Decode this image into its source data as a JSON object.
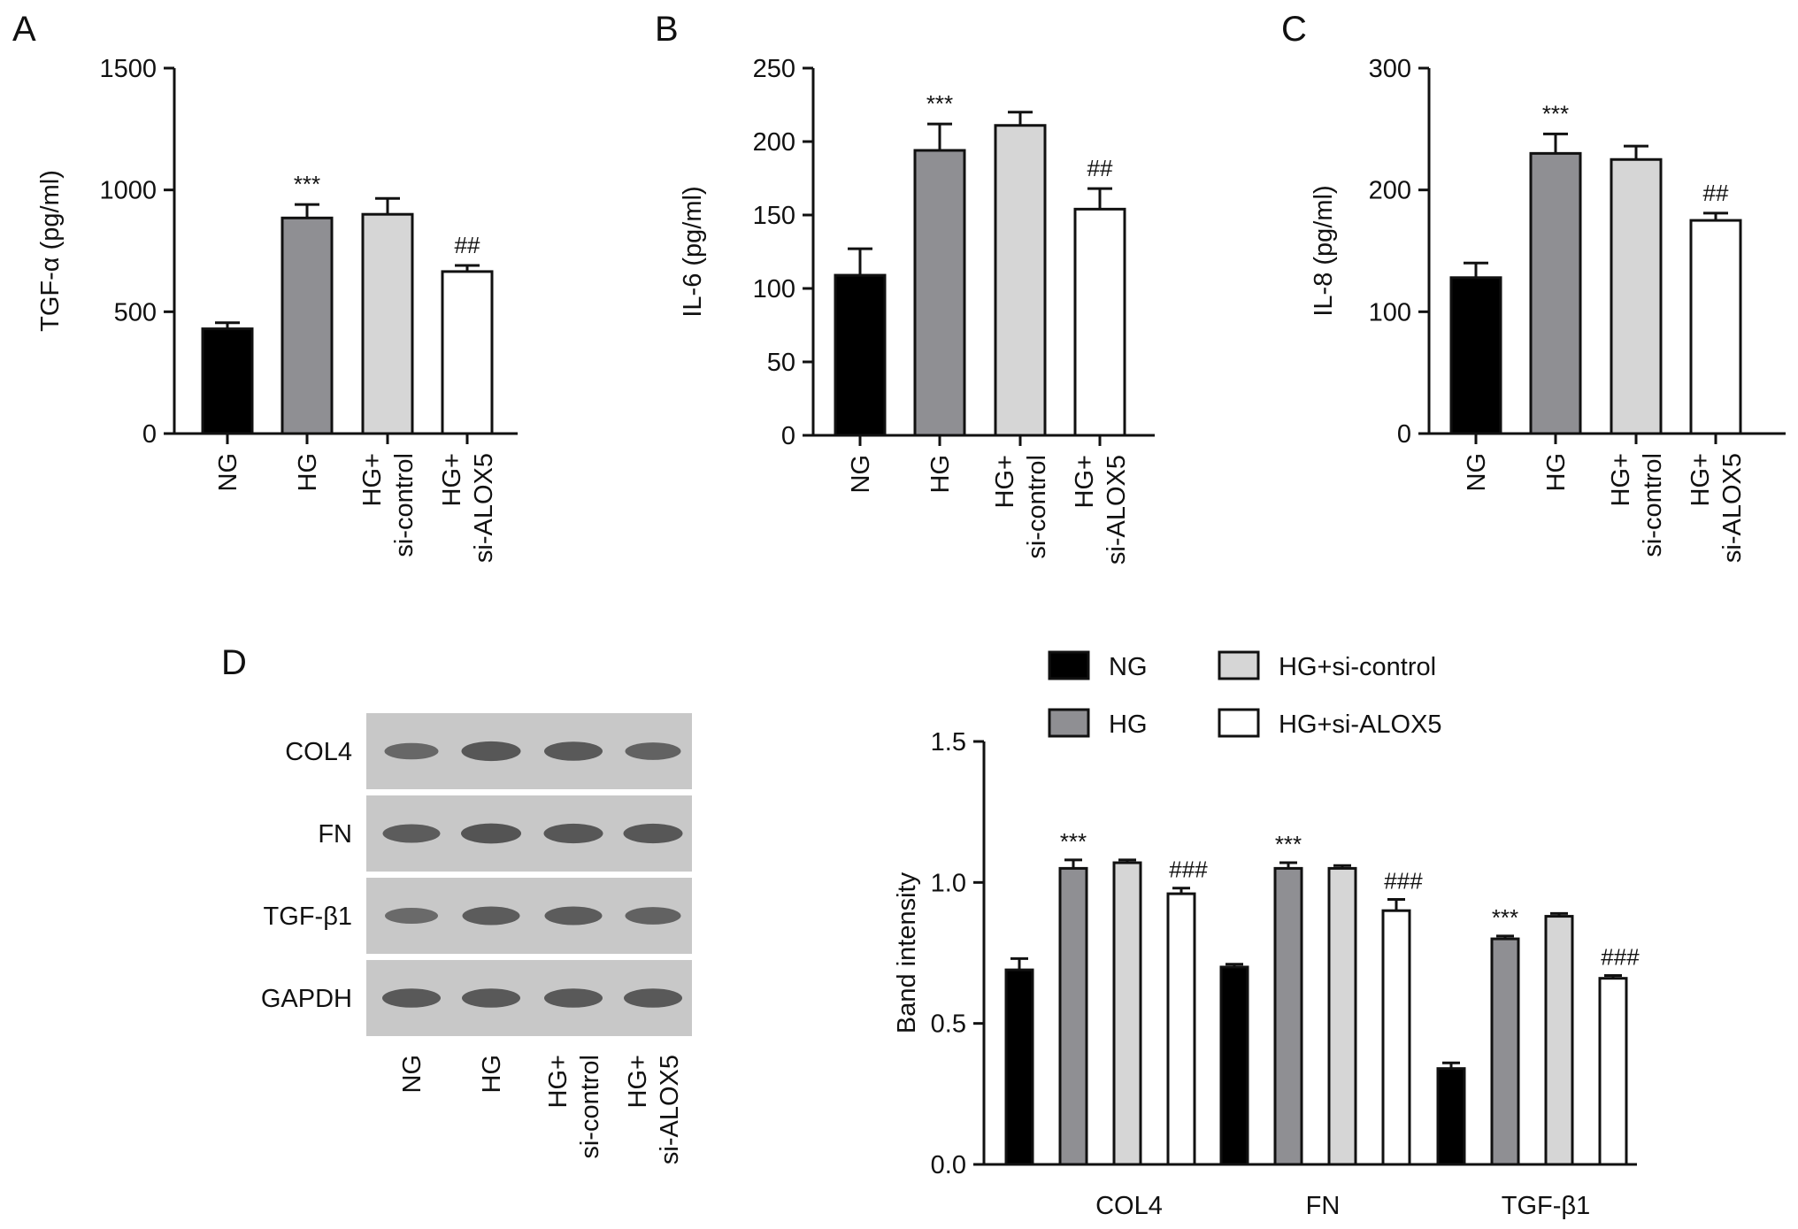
{
  "colors": {
    "NG": "#000000",
    "HG": "#8f8f93",
    "HG+si-control": "#d6d6d6",
    "HG+si-ALOX5": "#ffffff",
    "blot_background": "#c8c8c8",
    "band": "#4e4e4e"
  },
  "chart_data": [
    {
      "panel": "A",
      "type": "bar",
      "categories": [
        "NG",
        "HG",
        "HG+\nsi-control",
        "HG+\nsi-ALOX5"
      ],
      "values": [
        430,
        885,
        900,
        665
      ],
      "errors": [
        25,
        55,
        65,
        25
      ],
      "annotations": [
        "",
        "***",
        "",
        "##"
      ],
      "ylabel": "TGF-α (pg/ml)",
      "ylim": [
        0,
        1500
      ],
      "yticks": [
        0,
        500,
        1000,
        1500
      ]
    },
    {
      "panel": "B",
      "type": "bar",
      "categories": [
        "NG",
        "HG",
        "HG+\nsi-control",
        "HG+\nsi-ALOX5"
      ],
      "values": [
        109,
        194,
        211,
        154
      ],
      "errors": [
        18,
        18,
        9,
        14
      ],
      "annotations": [
        "",
        "***",
        "",
        "##"
      ],
      "ylabel": "IL-6 (pg/ml)",
      "ylim": [
        0,
        250
      ],
      "yticks": [
        0,
        50,
        100,
        150,
        200,
        250
      ]
    },
    {
      "panel": "C",
      "type": "bar",
      "categories": [
        "NG",
        "HG",
        "HG+\nsi-control",
        "HG+\nsi-ALOX5"
      ],
      "values": [
        128,
        230,
        225,
        175
      ],
      "errors": [
        12,
        16,
        11,
        6
      ],
      "annotations": [
        "",
        "***",
        "",
        "##"
      ],
      "ylabel": "IL-8 (pg/ml)",
      "ylim": [
        0,
        300
      ],
      "yticks": [
        0,
        100,
        200,
        300
      ]
    },
    {
      "panel": "D",
      "type": "bar",
      "categories": [
        "COL4",
        "FN",
        "TGF-β1"
      ],
      "series": [
        {
          "name": "NG",
          "values": [
            0.69,
            0.7,
            0.34
          ],
          "errors": [
            0.04,
            0.01,
            0.02
          ]
        },
        {
          "name": "HG",
          "values": [
            1.05,
            1.05,
            0.8
          ],
          "errors": [
            0.03,
            0.02,
            0.01
          ]
        },
        {
          "name": "HG+si-control",
          "values": [
            1.07,
            1.05,
            0.88
          ],
          "errors": [
            0.01,
            0.01,
            0.01
          ]
        },
        {
          "name": "HG+si-ALOX5",
          "values": [
            0.96,
            0.9,
            0.66
          ],
          "errors": [
            0.02,
            0.04,
            0.01
          ]
        }
      ],
      "annotations": [
        {
          "category": "COL4",
          "series": "HG",
          "text": "***"
        },
        {
          "category": "COL4",
          "series": "HG+si-ALOX5",
          "text": "###"
        },
        {
          "category": "FN",
          "series": "HG",
          "text": "***"
        },
        {
          "category": "FN",
          "series": "HG+si-ALOX5",
          "text": "###"
        },
        {
          "category": "TGF-β1",
          "series": "HG",
          "text": "***"
        },
        {
          "category": "TGF-β1",
          "series": "HG+si-ALOX5",
          "text": "###"
        }
      ],
      "ylabel": "Band intensity",
      "ylim": [
        0.0,
        1.5
      ],
      "yticks": [
        "0.0",
        "0.5",
        "1.0",
        "1.5"
      ],
      "legend_placement": "top"
    }
  ],
  "blot": {
    "panel": "D",
    "rows": [
      {
        "label": "COL4",
        "intensities": [
          0.55,
          0.85,
          0.8,
          0.65
        ]
      },
      {
        "label": "FN",
        "intensities": [
          0.75,
          0.9,
          0.85,
          0.85
        ]
      },
      {
        "label": "TGF-β1",
        "intensities": [
          0.5,
          0.75,
          0.75,
          0.65
        ]
      },
      {
        "label": "GAPDH",
        "intensities": [
          0.8,
          0.8,
          0.8,
          0.8
        ]
      }
    ],
    "lanes": [
      "NG",
      "HG",
      "HG+\nsi-control",
      "HG+\nsi-ALOX5"
    ]
  }
}
